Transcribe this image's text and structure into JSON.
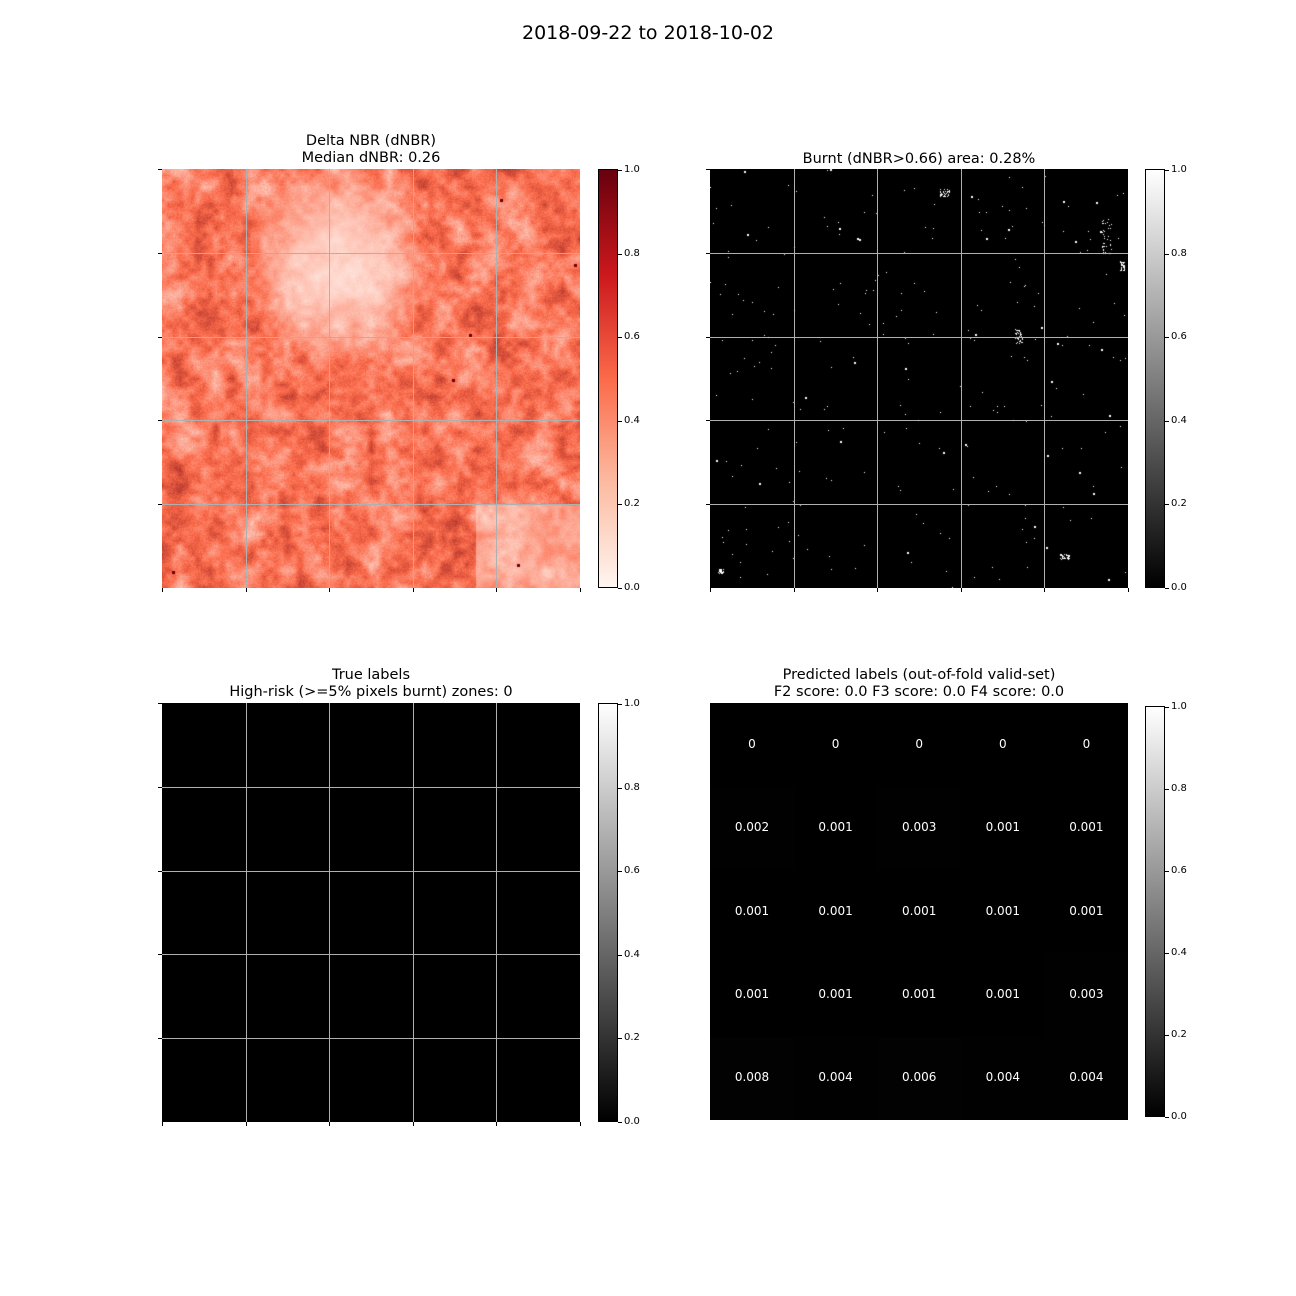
{
  "suptitle": "2018-09-22 to 2018-10-02",
  "chart_data": [
    {
      "type": "heatmap",
      "title_line1": "Delta NBR (dNBR)",
      "title_line2": "Median dNBR: 0.26",
      "colormap": "Reds",
      "colors": {
        "low": "#fff5f0",
        "mid": "#fb6a4a",
        "high": "#67000d"
      },
      "grid": true,
      "colorbar": {
        "ticks": [
          "0.0",
          "0.2",
          "0.4",
          "0.6",
          "0.8",
          "1.0"
        ],
        "range": [
          0,
          1
        ]
      }
    },
    {
      "type": "heatmap",
      "title_line1": "Burnt (dNBR>0.66) area: 0.28%",
      "colormap": "gray",
      "colors": {
        "low": "#000000",
        "high": "#ffffff"
      },
      "grid": true,
      "colorbar": {
        "ticks": [
          "0.0",
          "0.2",
          "0.4",
          "0.6",
          "0.8",
          "1.0"
        ],
        "range": [
          0,
          1
        ]
      }
    },
    {
      "type": "heatmap",
      "title_line1": "True labels",
      "title_line2": "High-risk (>=5% pixels burnt) zones: 0",
      "colormap": "gray",
      "grid": true,
      "values": [
        [
          0,
          0,
          0,
          0,
          0
        ],
        [
          0,
          0,
          0,
          0,
          0
        ],
        [
          0,
          0,
          0,
          0,
          0
        ],
        [
          0,
          0,
          0,
          0,
          0
        ],
        [
          0,
          0,
          0,
          0,
          0
        ]
      ],
      "colorbar": {
        "ticks": [
          "0.0",
          "0.2",
          "0.4",
          "0.6",
          "0.8",
          "1.0"
        ],
        "range": [
          0,
          1
        ]
      }
    },
    {
      "type": "heatmap",
      "title_line1": "Predicted labels (out-of-fold valid-set)",
      "title_line2": "F2 score: 0.0 F3 score: 0.0 F4 score: 0.0",
      "colormap": "gray",
      "grid": false,
      "values": [
        [
          0,
          0,
          0,
          0,
          0
        ],
        [
          0.002,
          0.001,
          0.003,
          0.001,
          0.001
        ],
        [
          0.001,
          0.001,
          0.001,
          0.001,
          0.001
        ],
        [
          0.001,
          0.001,
          0.001,
          0.001,
          0.003
        ],
        [
          0.008,
          0.004,
          0.006,
          0.004,
          0.004
        ]
      ],
      "labels": [
        [
          "0",
          "0",
          "0",
          "0",
          "0"
        ],
        [
          "0.002",
          "0.001",
          "0.003",
          "0.001",
          "0.001"
        ],
        [
          "0.001",
          "0.001",
          "0.001",
          "0.001",
          "0.001"
        ],
        [
          "0.001",
          "0.001",
          "0.001",
          "0.001",
          "0.003"
        ],
        [
          "0.008",
          "0.004",
          "0.006",
          "0.004",
          "0.004"
        ]
      ],
      "colorbar": {
        "ticks": [
          "0.0",
          "0.2",
          "0.4",
          "0.6",
          "0.8",
          "1.0"
        ],
        "range": [
          0,
          1
        ]
      }
    }
  ]
}
